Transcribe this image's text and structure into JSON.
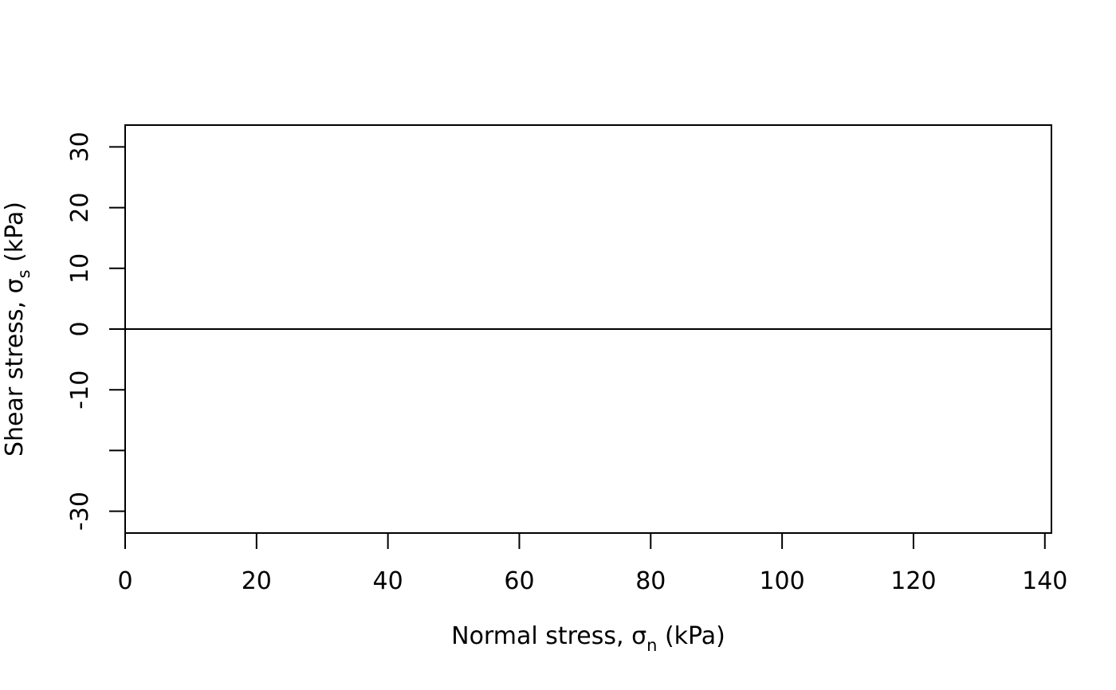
{
  "chart_data": {
    "type": "line",
    "title": "",
    "xlabel": {
      "text": "Normal stress, ",
      "symbol": "σ",
      "subscript": "n",
      "unit": " (kPa)"
    },
    "ylabel": {
      "text": "Shear stress, ",
      "symbol": "σ",
      "subscript": "s",
      "unit": " (kPa)"
    },
    "xlim": [
      0,
      141
    ],
    "ylim": [
      -33.6,
      33.6
    ],
    "x_ticks": [
      {
        "value": 0,
        "label": "0"
      },
      {
        "value": 20,
        "label": "20"
      },
      {
        "value": 40,
        "label": "40"
      },
      {
        "value": 60,
        "label": "60"
      },
      {
        "value": 80,
        "label": "80"
      },
      {
        "value": 100,
        "label": "100"
      },
      {
        "value": 120,
        "label": "120"
      },
      {
        "value": 140,
        "label": "140"
      }
    ],
    "y_ticks": [
      {
        "value": 30,
        "label": "30"
      },
      {
        "value": 20,
        "label": "20"
      },
      {
        "value": 10,
        "label": "10"
      },
      {
        "value": 0,
        "label": "0"
      },
      {
        "value": -10,
        "label": "-10"
      },
      {
        "value": -20,
        "label": ""
      },
      {
        "value": -30,
        "label": "-30"
      }
    ],
    "reference_lines": [
      {
        "axis": "y",
        "value": 0
      }
    ],
    "series": [],
    "grid": false,
    "legend": "none",
    "colors": {
      "axis": "#000000",
      "background": "#ffffff"
    }
  }
}
